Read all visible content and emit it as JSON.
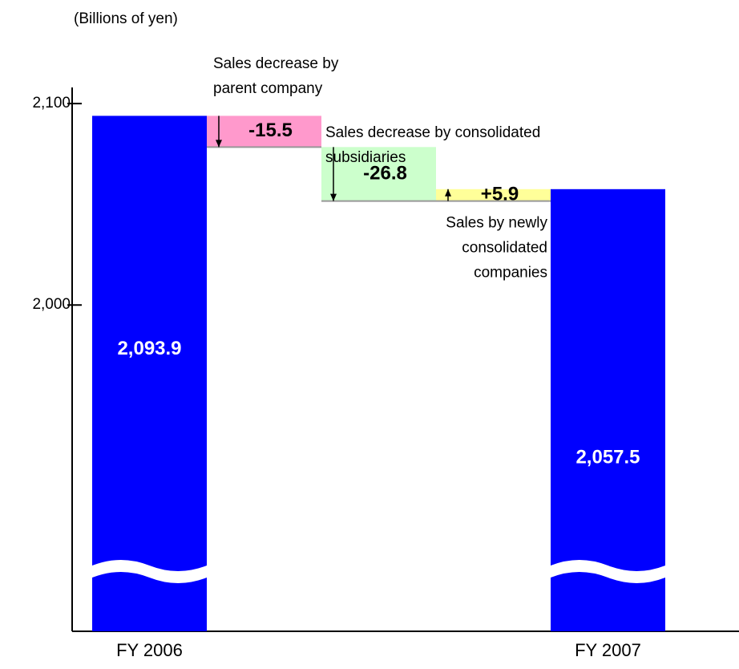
{
  "chart_data": {
    "type": "waterfall",
    "unit_label": "(Billions of yen)",
    "categories": [
      "FY 2006",
      null,
      null,
      null,
      "FY 2007"
    ],
    "measures": [
      "absolute",
      "relative",
      "relative",
      "relative",
      "absolute"
    ],
    "values": [
      2093.9,
      -15.5,
      -26.8,
      5.9,
      2057.5
    ],
    "value_labels": [
      "2,093.9",
      "-15.5",
      "-26.8",
      "+5.9",
      "2,057.5"
    ],
    "colors": [
      "#0000ff",
      "#ff99cc",
      "#ccffcc",
      "#ffff99",
      "#0000ff"
    ],
    "annotations": [
      {
        "index": 1,
        "lines": [
          "Sales decrease by",
          "parent company"
        ]
      },
      {
        "index": 2,
        "lines": [
          "Sales decrease by consolidated",
          "subsidiaries"
        ]
      },
      {
        "index": 3,
        "lines": [
          "Sales by newly",
          "consolidated",
          "companies"
        ]
      }
    ],
    "ylim": [
      1838,
      2108
    ],
    "yticks": [
      {
        "value": 2000,
        "label": "2,000"
      },
      {
        "value": 2100,
        "label": "2,100"
      }
    ],
    "axis_break": true
  }
}
